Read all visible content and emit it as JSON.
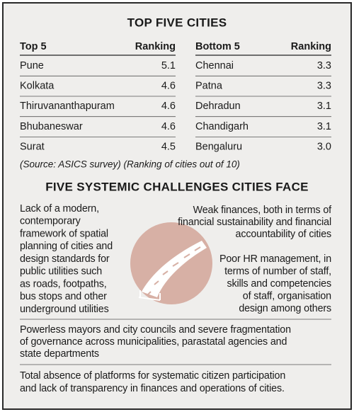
{
  "header": {
    "title": "TOP FIVE CITIES"
  },
  "top_table": {
    "columns": [
      "Top 5",
      "Ranking"
    ],
    "rows": [
      [
        "Pune",
        "5.1"
      ],
      [
        "Kolkata",
        "4.6"
      ],
      [
        "Thiruvananthapuram",
        "4.6"
      ],
      [
        "Bhubaneswar",
        "4.6"
      ],
      [
        "Surat",
        "4.5"
      ]
    ]
  },
  "bottom_table": {
    "columns": [
      "Bottom 5",
      "Ranking"
    ],
    "rows": [
      [
        "Chennai",
        "3.3"
      ],
      [
        "Patna",
        "3.3"
      ],
      [
        "Dehradun",
        "3.1"
      ],
      [
        "Chandigarh",
        "3.1"
      ],
      [
        "Bengaluru",
        "3.0"
      ]
    ]
  },
  "source": "(Source: ASICS survey) (Ranking of cities out of 10)",
  "challenges_title": "FIVE SYSTEMIC CHALLENGES CITIES FACE",
  "challenges": [
    {
      "lines": [
        "Lack of a modern,",
        "contemporary",
        "framework of spatial",
        "planning of cities and",
        "design standards for",
        "public utilities such",
        "as roads, footpaths,",
        "bus stops and other",
        "underground utilities"
      ]
    },
    {
      "lines": [
        "Weak finances, both in terms of",
        "financial sustainability and financial",
        "accountability of cities"
      ]
    },
    {
      "lines": [
        "Poor HR management, in",
        "terms of number of staff,",
        "skills and competencies",
        "of staff, organisation",
        "design among others"
      ]
    },
    {
      "lines": [
        "Powerless mayors and city councils and severe fragmentation",
        "of governance across municipalities, parastatal agencies and",
        "state departments"
      ]
    },
    {
      "lines": [
        "Total absence of platforms for systematic citizen participation",
        "and lack of transparency in finances and operations of cities."
      ]
    }
  ]
}
